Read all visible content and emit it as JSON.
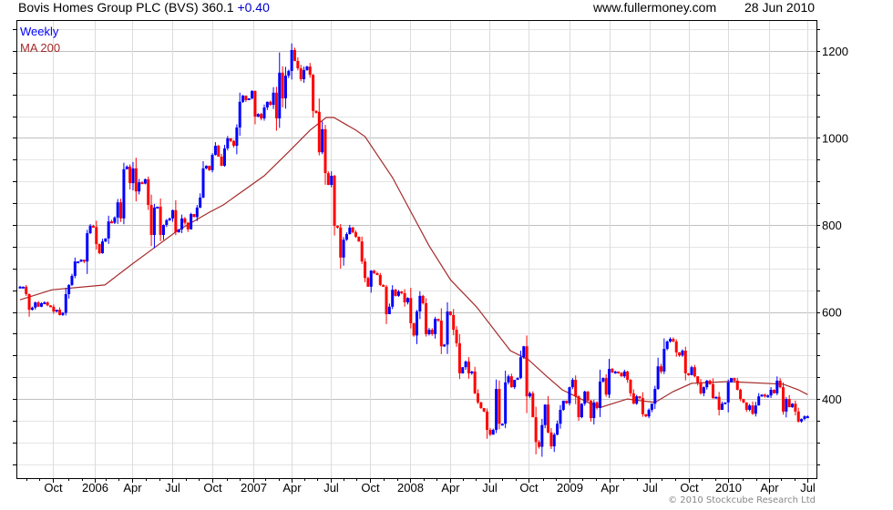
{
  "header": {
    "title": "Bovis Homes Group PLC (BVS) 360.1",
    "change": "+0.40",
    "site": "www.fullermoney.com",
    "date": "28 Jun 2010"
  },
  "footer": {
    "copyright": "© 2010 Stockcube Research Ltd"
  },
  "colors": {
    "up": "#0000ff",
    "down": "#ff0000",
    "ma": "#a52a2a",
    "grid_major": "#c0c0c0",
    "grid_minor": "#e4e4e4"
  },
  "chart_data": {
    "type": "candlestick",
    "title": "Bovis Homes Group PLC (BVS) 360.1 +0.40",
    "legend": [
      {
        "label": "Weekly",
        "color": "#0000ff"
      },
      {
        "label": "MA 200",
        "color": "#a52a2a"
      }
    ],
    "legend_position": "top-left",
    "ylim": [
      218,
      1271
    ],
    "xlim_weeks": [
      -1.2,
      260.9
    ],
    "y_ticks": [
      400,
      600,
      800,
      1000,
      1200
    ],
    "x_ticks": [
      {
        "label": "Oct",
        "week": 10.7
      },
      {
        "label": "2006",
        "week": 24.5
      },
      {
        "label": "Apr",
        "week": 36.7
      },
      {
        "label": "Jul",
        "week": 49.9
      },
      {
        "label": "Oct",
        "week": 63
      },
      {
        "label": "2007",
        "week": 76.4
      },
      {
        "label": "Apr",
        "week": 89
      },
      {
        "label": "Jul",
        "week": 101.8
      },
      {
        "label": "Oct",
        "week": 114.6
      },
      {
        "label": "2008",
        "week": 127.8
      },
      {
        "label": "Apr",
        "week": 140.9
      },
      {
        "label": "Jul",
        "week": 153.7
      },
      {
        "label": "Oct",
        "week": 166.6
      },
      {
        "label": "2009",
        "week": 180
      },
      {
        "label": "Apr",
        "week": 193
      },
      {
        "label": "Jul",
        "week": 206.3
      },
      {
        "label": "Oct",
        "week": 219
      },
      {
        "label": "2010",
        "week": 232
      },
      {
        "label": "Apr",
        "week": 245.4
      },
      {
        "label": "Jul",
        "week": 258
      }
    ],
    "weekly_close": [
      658,
      658,
      641,
      605,
      610,
      622,
      612,
      620,
      622,
      615,
      612,
      601,
      605,
      593,
      598,
      641,
      662,
      683,
      716,
      716,
      720,
      716,
      781,
      798,
      795,
      756,
      735,
      762,
      769,
      808,
      805,
      817,
      852,
      815,
      928,
      934,
      896,
      930,
      877,
      898,
      895,
      905,
      846,
      777,
      840,
      842,
      777,
      800,
      811,
      815,
      834,
      783,
      790,
      815,
      805,
      790,
      825,
      818,
      840,
      863,
      930,
      936,
      926,
      961,
      982,
      957,
      936,
      976,
      999,
      993,
      982,
      1024,
      1083,
      1097,
      1087,
      1091,
      1108,
      1049,
      1055,
      1045,
      1070,
      1083,
      1076,
      1104,
      1045,
      1150,
      1091,
      1143,
      1154,
      1202,
      1177,
      1160,
      1135,
      1156,
      1164,
      1145,
      1062,
      1060,
      967,
      1020,
      919,
      892,
      913,
      798,
      794,
      725,
      766,
      779,
      794,
      783,
      773,
      762,
      716,
      678,
      658,
      695,
      689,
      685,
      662,
      658,
      595,
      612,
      651,
      637,
      647,
      643,
      622,
      632,
      574,
      546,
      601,
      637,
      620,
      549,
      559,
      549,
      584,
      580,
      521,
      525,
      601,
      593,
      559,
      528,
      459,
      473,
      486,
      459,
      463,
      413,
      392,
      379,
      371,
      329,
      318,
      329,
      423,
      343,
      343,
      438,
      452,
      427,
      444,
      448,
      496,
      521,
      406,
      413,
      358,
      301,
      290,
      340,
      387,
      323,
      291,
      318,
      343,
      375,
      396,
      390,
      427,
      444,
      406,
      358,
      389,
      417,
      396,
      356,
      392,
      379,
      440,
      448,
      410,
      469,
      461,
      463,
      460,
      452,
      463,
      444,
      413,
      389,
      406,
      402,
      365,
      360,
      375,
      389,
      423,
      475,
      463,
      515,
      532,
      538,
      532,
      507,
      500,
      511,
      459,
      455,
      473,
      452,
      438,
      413,
      427,
      442,
      434,
      402,
      405,
      375,
      389,
      392,
      438,
      448,
      442,
      421,
      400,
      392,
      375,
      385,
      366,
      385,
      406,
      410,
      406,
      408,
      421,
      413,
      442,
      427,
      371,
      400,
      381,
      389,
      371,
      348,
      354,
      360,
      360.1
    ],
    "ma200_points": [
      [
        0,
        628
      ],
      [
        10.5,
        651
      ],
      [
        27.8,
        662
      ],
      [
        36.7,
        710
      ],
      [
        42.7,
        741
      ],
      [
        51.6,
        787
      ],
      [
        62,
        829
      ],
      [
        66.6,
        846
      ],
      [
        80,
        913
      ],
      [
        88,
        968
      ],
      [
        95,
        1018
      ],
      [
        100.3,
        1047
      ],
      [
        102.8,
        1047
      ],
      [
        110,
        1018
      ],
      [
        113,
        1003
      ],
      [
        122,
        909
      ],
      [
        134,
        752
      ],
      [
        141,
        674
      ],
      [
        149.6,
        611
      ],
      [
        160.6,
        511
      ],
      [
        166.6,
        490
      ],
      [
        172.5,
        452
      ],
      [
        177.6,
        421
      ],
      [
        186.6,
        390
      ],
      [
        190.4,
        381
      ],
      [
        199,
        400
      ],
      [
        208,
        392
      ],
      [
        214,
        417
      ],
      [
        220,
        436
      ],
      [
        232,
        440
      ],
      [
        250,
        434
      ],
      [
        255,
        421
      ],
      [
        258,
        410
      ]
    ]
  }
}
